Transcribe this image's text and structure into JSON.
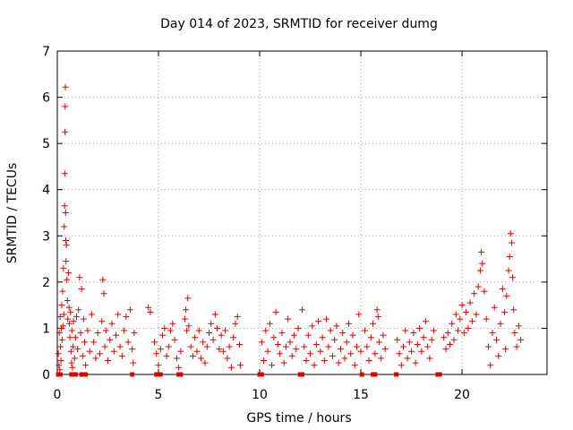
{
  "chart_data": {
    "type": "scatter",
    "title": "Day 014 of 2023, SRMTID for receiver dumg",
    "xlabel": "GPS time / hours",
    "ylabel": "SRMTID / TECUs",
    "xlim": [
      0,
      24.2
    ],
    "ylim": [
      0,
      7
    ],
    "xticks": [
      0,
      5,
      10,
      15,
      20
    ],
    "yticks": [
      0,
      1,
      2,
      3,
      4,
      5,
      6,
      7
    ],
    "grid": true,
    "marker": "+",
    "marker_color": "#e00000",
    "series": [
      {
        "name": "SRMTID",
        "points": [
          [
            0.05,
            0.45
          ],
          [
            0.08,
            0.2
          ],
          [
            0.1,
            0.9
          ],
          [
            0.12,
            0.1
          ],
          [
            0.14,
            1.25
          ],
          [
            0.16,
            0.6
          ],
          [
            0.18,
            0.3
          ],
          [
            0.2,
            1.0
          ],
          [
            0.22,
            1.5
          ],
          [
            0.24,
            0.75
          ],
          [
            0.26,
            1.8
          ],
          [
            0.28,
            1.05
          ],
          [
            0.3,
            2.3
          ],
          [
            0.32,
            1.3
          ],
          [
            0.34,
            3.2
          ],
          [
            0.36,
            3.65
          ],
          [
            0.37,
            4.35
          ],
          [
            0.38,
            5.25
          ],
          [
            0.39,
            5.8
          ],
          [
            0.4,
            6.22
          ],
          [
            0.41,
            3.5
          ],
          [
            0.42,
            2.9
          ],
          [
            0.43,
            2.45
          ],
          [
            0.45,
            2.8
          ],
          [
            0.47,
            2.05
          ],
          [
            0.5,
            1.6
          ],
          [
            0.52,
            1.2
          ],
          [
            0.55,
            2.2
          ],
          [
            0.58,
            1.45
          ],
          [
            0.6,
            1.1
          ],
          [
            0.62,
            0.8
          ],
          [
            0.65,
            1.35
          ],
          [
            0.68,
            0.5
          ],
          [
            0.7,
            0.25
          ],
          [
            0.72,
            0.95
          ],
          [
            0.75,
            0.15
          ],
          [
            0.78,
            0.6
          ],
          [
            0.8,
            1.15
          ],
          [
            0.85,
            0.35
          ],
          [
            0.9,
            0.8
          ],
          [
            0.95,
            1.25
          ],
          [
            1.0,
            0.55
          ],
          [
            1.05,
            1.4
          ],
          [
            1.1,
            2.1
          ],
          [
            1.15,
            0.9
          ],
          [
            1.2,
            1.85
          ],
          [
            1.25,
            0.4
          ],
          [
            1.3,
            1.2
          ],
          [
            1.35,
            0.7
          ],
          [
            1.4,
            0.2
          ],
          [
            1.5,
            0.95
          ],
          [
            1.6,
            0.5
          ],
          [
            1.7,
            1.3
          ],
          [
            1.8,
            0.7
          ],
          [
            1.9,
            0.35
          ],
          [
            2.0,
            0.9
          ],
          [
            2.1,
            0.45
          ],
          [
            2.2,
            1.15
          ],
          [
            2.25,
            2.05
          ],
          [
            2.3,
            1.75
          ],
          [
            2.35,
            0.6
          ],
          [
            2.4,
            0.95
          ],
          [
            2.5,
            0.3
          ],
          [
            2.6,
            0.75
          ],
          [
            2.7,
            1.1
          ],
          [
            2.8,
            0.5
          ],
          [
            2.9,
            0.85
          ],
          [
            3.0,
            1.3
          ],
          [
            3.1,
            0.6
          ],
          [
            3.2,
            0.4
          ],
          [
            3.3,
            0.95
          ],
          [
            3.4,
            1.25
          ],
          [
            3.5,
            0.7
          ],
          [
            3.6,
            1.4
          ],
          [
            3.7,
            0.55
          ],
          [
            3.75,
            0.25
          ],
          [
            3.8,
            0.9
          ],
          [
            4.5,
            1.45
          ],
          [
            4.6,
            1.35
          ],
          [
            4.8,
            0.7
          ],
          [
            4.9,
            0.45
          ],
          [
            5.0,
            0.2
          ],
          [
            5.1,
            0.55
          ],
          [
            5.2,
            0.85
          ],
          [
            5.3,
            1.0
          ],
          [
            5.4,
            0.4
          ],
          [
            5.5,
            0.6
          ],
          [
            5.6,
            0.95
          ],
          [
            5.7,
            1.1
          ],
          [
            5.8,
            0.75
          ],
          [
            5.9,
            0.35
          ],
          [
            6.0,
            0.15
          ],
          [
            6.1,
            0.5
          ],
          [
            6.3,
            1.2
          ],
          [
            6.35,
            1.4
          ],
          [
            6.4,
            0.95
          ],
          [
            6.45,
            1.65
          ],
          [
            6.5,
            1.05
          ],
          [
            6.6,
            0.6
          ],
          [
            6.7,
            0.4
          ],
          [
            6.8,
            0.8
          ],
          [
            6.9,
            0.5
          ],
          [
            7.0,
            0.95
          ],
          [
            7.1,
            0.35
          ],
          [
            7.2,
            0.7
          ],
          [
            7.3,
            0.25
          ],
          [
            7.4,
            0.6
          ],
          [
            7.5,
            0.9
          ],
          [
            7.6,
            1.1
          ],
          [
            7.7,
            0.75
          ],
          [
            7.8,
            1.3
          ],
          [
            7.9,
            1.0
          ],
          [
            8.0,
            0.55
          ],
          [
            8.1,
            0.85
          ],
          [
            8.2,
            0.5
          ],
          [
            8.3,
            0.95
          ],
          [
            8.4,
            0.35
          ],
          [
            8.5,
            0.6
          ],
          [
            8.6,
            0.15
          ],
          [
            8.7,
            0.8
          ],
          [
            8.8,
            1.1
          ],
          [
            8.9,
            1.25
          ],
          [
            9.0,
            0.65
          ],
          [
            9.05,
            0.2
          ],
          [
            10.1,
            0.7
          ],
          [
            10.2,
            0.3
          ],
          [
            10.3,
            0.95
          ],
          [
            10.4,
            0.5
          ],
          [
            10.5,
            1.1
          ],
          [
            10.6,
            0.2
          ],
          [
            10.7,
            0.8
          ],
          [
            10.8,
            1.35
          ],
          [
            10.9,
            0.65
          ],
          [
            11.0,
            0.45
          ],
          [
            11.1,
            0.9
          ],
          [
            11.2,
            0.25
          ],
          [
            11.3,
            0.6
          ],
          [
            11.4,
            1.2
          ],
          [
            11.5,
            0.7
          ],
          [
            11.6,
            0.4
          ],
          [
            11.7,
            0.85
          ],
          [
            11.8,
            0.55
          ],
          [
            11.9,
            1.0
          ],
          [
            12.1,
            1.4
          ],
          [
            12.2,
            0.6
          ],
          [
            12.3,
            0.3
          ],
          [
            12.4,
            0.85
          ],
          [
            12.5,
            0.45
          ],
          [
            12.6,
            1.05
          ],
          [
            12.7,
            0.2
          ],
          [
            12.8,
            0.65
          ],
          [
            12.9,
            1.15
          ],
          [
            13.0,
            0.5
          ],
          [
            13.1,
            0.8
          ],
          [
            13.2,
            0.3
          ],
          [
            13.3,
            1.2
          ],
          [
            13.4,
            0.6
          ],
          [
            13.5,
            0.95
          ],
          [
            13.6,
            0.4
          ],
          [
            13.7,
            0.75
          ],
          [
            13.8,
            1.05
          ],
          [
            13.9,
            0.25
          ],
          [
            14.0,
            0.55
          ],
          [
            14.1,
            0.9
          ],
          [
            14.2,
            0.35
          ],
          [
            14.3,
            0.7
          ],
          [
            14.4,
            1.1
          ],
          [
            14.5,
            0.45
          ],
          [
            14.6,
            0.85
          ],
          [
            14.7,
            0.2
          ],
          [
            14.8,
            0.6
          ],
          [
            14.9,
            1.3
          ],
          [
            15.0,
            0.5
          ],
          [
            15.2,
            0.95
          ],
          [
            15.3,
            0.6
          ],
          [
            15.4,
            0.3
          ],
          [
            15.5,
            0.8
          ],
          [
            15.6,
            1.1
          ],
          [
            15.7,
            0.45
          ],
          [
            15.8,
            1.4
          ],
          [
            15.85,
            1.25
          ],
          [
            15.9,
            0.7
          ],
          [
            16.0,
            0.35
          ],
          [
            16.1,
            0.85
          ],
          [
            16.2,
            0.55
          ],
          [
            16.8,
            0.75
          ],
          [
            16.9,
            0.45
          ],
          [
            17.0,
            0.2
          ],
          [
            17.1,
            0.6
          ],
          [
            17.2,
            0.95
          ],
          [
            17.3,
            0.35
          ],
          [
            17.4,
            0.7
          ],
          [
            17.5,
            0.5
          ],
          [
            17.6,
            0.9
          ],
          [
            17.7,
            0.25
          ],
          [
            17.8,
            0.65
          ],
          [
            17.9,
            1.0
          ],
          [
            18.0,
            0.5
          ],
          [
            18.1,
            0.8
          ],
          [
            18.2,
            1.15
          ],
          [
            18.3,
            0.6
          ],
          [
            18.4,
            0.35
          ],
          [
            18.5,
            0.75
          ],
          [
            18.6,
            0.95
          ],
          [
            19.1,
            0.8
          ],
          [
            19.2,
            0.55
          ],
          [
            19.3,
            0.9
          ],
          [
            19.4,
            0.65
          ],
          [
            19.5,
            1.1
          ],
          [
            19.6,
            0.75
          ],
          [
            19.7,
            1.3
          ],
          [
            19.8,
            0.95
          ],
          [
            19.9,
            1.2
          ],
          [
            20.0,
            1.5
          ],
          [
            20.1,
            0.9
          ],
          [
            20.2,
            1.35
          ],
          [
            20.3,
            1.0
          ],
          [
            20.4,
            1.55
          ],
          [
            20.5,
            1.15
          ],
          [
            20.6,
            1.75
          ],
          [
            20.7,
            1.3
          ],
          [
            20.8,
            1.9
          ],
          [
            20.9,
            2.25
          ],
          [
            20.95,
            2.65
          ],
          [
            21.0,
            2.4
          ],
          [
            21.1,
            1.8
          ],
          [
            21.2,
            1.2
          ],
          [
            21.3,
            0.6
          ],
          [
            21.4,
            0.2
          ],
          [
            21.5,
            0.9
          ],
          [
            21.6,
            1.45
          ],
          [
            21.7,
            0.75
          ],
          [
            21.8,
            0.4
          ],
          [
            21.9,
            1.1
          ],
          [
            22.0,
            1.85
          ],
          [
            22.1,
            1.35
          ],
          [
            22.15,
            0.55
          ],
          [
            22.2,
            1.7
          ],
          [
            22.3,
            2.25
          ],
          [
            22.35,
            2.55
          ],
          [
            22.4,
            3.05
          ],
          [
            22.45,
            2.85
          ],
          [
            22.5,
            2.1
          ],
          [
            22.55,
            1.4
          ],
          [
            22.6,
            0.9
          ],
          [
            22.7,
            0.6
          ],
          [
            22.8,
            1.05
          ],
          [
            22.9,
            0.75
          ]
        ]
      }
    ],
    "zero_points_x": [
      0.05,
      0.15,
      0.7,
      0.75,
      0.9,
      1.2,
      1.4,
      3.7,
      4.9,
      5.0,
      5.1,
      6.0,
      6.1,
      10.0,
      10.1,
      12.0,
      12.1,
      15.05,
      15.6,
      15.7,
      16.75,
      18.8,
      18.9
    ]
  }
}
